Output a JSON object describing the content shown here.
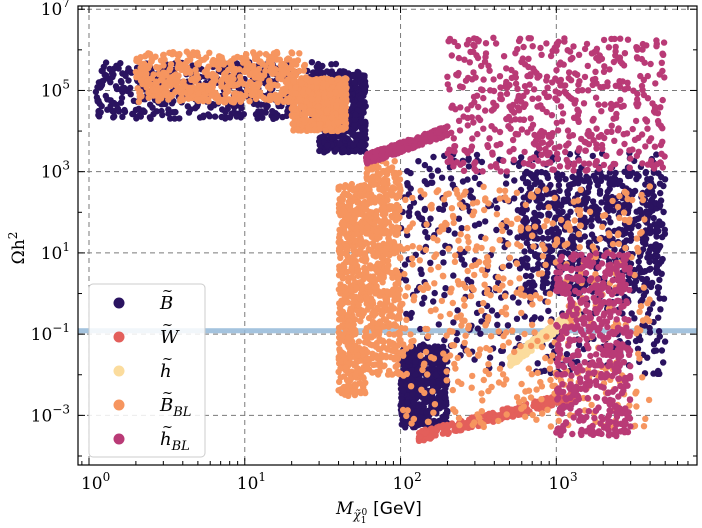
{
  "chart_data": {
    "type": "scatter",
    "title": "",
    "xlabel": "M_{χ̃₁⁰} [GeV]",
    "xlabel_main": "M",
    "xlabel_sub": "χ̃",
    "xlabel_subsub": "1",
    "xlabel_supsub": "0",
    "xlabel_unit": "[GeV]",
    "ylabel": "Ωh²",
    "ylabel_main": "Ωh",
    "ylabel_sup": "2",
    "xscale": "log",
    "yscale": "log",
    "xlim": [
      0.85,
      8000
    ],
    "ylim": [
      6e-05,
      12000000
    ],
    "grid": true,
    "x_ticks": [
      {
        "value": 1,
        "base": "10",
        "exp": "0"
      },
      {
        "value": 10,
        "base": "10",
        "exp": "1"
      },
      {
        "value": 100,
        "base": "10",
        "exp": "2"
      },
      {
        "value": 1000,
        "base": "10",
        "exp": "3"
      }
    ],
    "y_ticks": [
      {
        "value": 0.001,
        "base": "10",
        "exp": "−3"
      },
      {
        "value": 0.1,
        "base": "10",
        "exp": "−1"
      },
      {
        "value": 10,
        "base": "10",
        "exp": "1"
      },
      {
        "value": 1000,
        "base": "10",
        "exp": "3"
      },
      {
        "value": 100000,
        "base": "10",
        "exp": "5"
      },
      {
        "value": 10000000,
        "base": "10",
        "exp": "7"
      }
    ],
    "relic_band": {
      "y_low": 0.105,
      "y_high": 0.14,
      "color": "#94b8d8"
    },
    "legend_position": "lower-left",
    "series": [
      {
        "name": "B̃",
        "label_main": "B",
        "label_sub": "",
        "color": "#2a1360",
        "regions": [
          {
            "x": [
              1.1,
              40
            ],
            "y": [
              20000,
              500000
            ]
          },
          {
            "x": [
              30,
              60
            ],
            "y": [
              3000,
              300000
            ]
          },
          {
            "x": [
              100,
              5000
            ],
            "y": [
              0.01,
              3000
            ]
          },
          {
            "x": [
              100,
              200
            ],
            "y": [
              0.0005,
              0.05
            ]
          },
          {
            "x": [
              600,
              5000
            ],
            "y": [
              1,
              1000
            ]
          }
        ]
      },
      {
        "name": "W̃",
        "label_main": "W",
        "label_sub": "",
        "color": "#e35f5b",
        "regions": [
          {
            "x": [
              130,
              1300
            ],
            "y": [
              0.0003,
              0.003
            ],
            "diag": true
          }
        ]
      },
      {
        "name": "h̃",
        "label_main": "h",
        "label_sub": "",
        "color": "#fbdc9d",
        "regions": [
          {
            "x": [
              500,
              1400
            ],
            "y": [
              0.02,
              0.4
            ],
            "diag": true
          }
        ]
      },
      {
        "name": "B̃_BL",
        "label_main": "B",
        "label_sub": "BL",
        "color": "#f6955f",
        "regions": [
          {
            "x": [
              2,
              25
            ],
            "y": [
              50000,
              900000
            ]
          },
          {
            "x": [
              20,
              45
            ],
            "y": [
              10000,
              200000
            ]
          },
          {
            "x": [
              40,
              60
            ],
            "y": [
              0.003,
              500
            ]
          },
          {
            "x": [
              60,
              100
            ],
            "y": [
              0.01,
              2000
            ]
          },
          {
            "x": [
              100,
              4000
            ],
            "y": [
              0.0005,
              500
            ]
          }
        ]
      },
      {
        "name": "h̃_BL",
        "label_main": "h",
        "label_sub": "BL",
        "color": "#b93a76",
        "regions": [
          {
            "x": [
              200,
              5000
            ],
            "y": [
              1000,
              2000000
            ]
          },
          {
            "x": [
              1000,
              3000
            ],
            "y": [
              0.0003,
              10
            ]
          },
          {
            "x": [
              60,
              200
            ],
            "y": [
              2000,
              10000
            ],
            "diag": true
          }
        ]
      }
    ]
  }
}
